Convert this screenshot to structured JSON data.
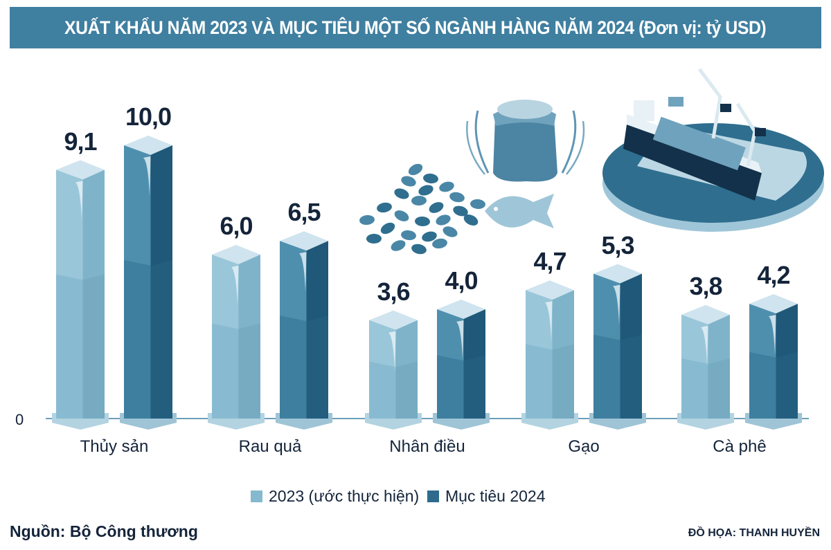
{
  "header": {
    "title": "XUẤT KHẨU NĂM 2023 VÀ MỤC TIÊU MỘT SỐ NGÀNH HÀNG NĂM 2024 (Đơn vị: tỷ USD)"
  },
  "footer": {
    "source": "Nguồn: Bộ Công thương",
    "credit": "ĐỒ HỌA: THANH HUYỀN"
  },
  "illustrations": [
    "coffee-beans-icon",
    "rice-sack-icon",
    "fish-icon",
    "cargo-ship-port-icon"
  ],
  "colors": {
    "title_bg": "#3f7fa0",
    "series_2023": "#85b9cf",
    "series_2024": "#2e6b8c",
    "text": "#14243a"
  },
  "chart_data": {
    "type": "bar",
    "title": "XUẤT KHẨU NĂM 2023 VÀ MỤC TIÊU MỘT SỐ NGÀNH HÀNG NĂM 2024 (Đơn vị: tỷ USD)",
    "xlabel": "",
    "ylabel": "",
    "unit": "tỷ USD",
    "categories": [
      "Thủy sản",
      "Rau quả",
      "Nhân điều",
      "Gạo",
      "Cà phê"
    ],
    "series": [
      {
        "name": "2023 (ước thực hiện)",
        "values": [
          9.1,
          6.0,
          3.6,
          4.7,
          3.8
        ],
        "labels": [
          "9,1",
          "6,0",
          "3,6",
          "4,7",
          "3,8"
        ]
      },
      {
        "name": "Mục tiêu 2024",
        "values": [
          10.0,
          6.5,
          4.0,
          5.3,
          4.2
        ],
        "labels": [
          "10,0",
          "6,5",
          "4,0",
          "5,3",
          "4,2"
        ]
      }
    ],
    "y_tick_labels": [
      "0"
    ],
    "ylim": [
      0,
      10
    ],
    "grid": false,
    "legend": "bottom-center"
  }
}
